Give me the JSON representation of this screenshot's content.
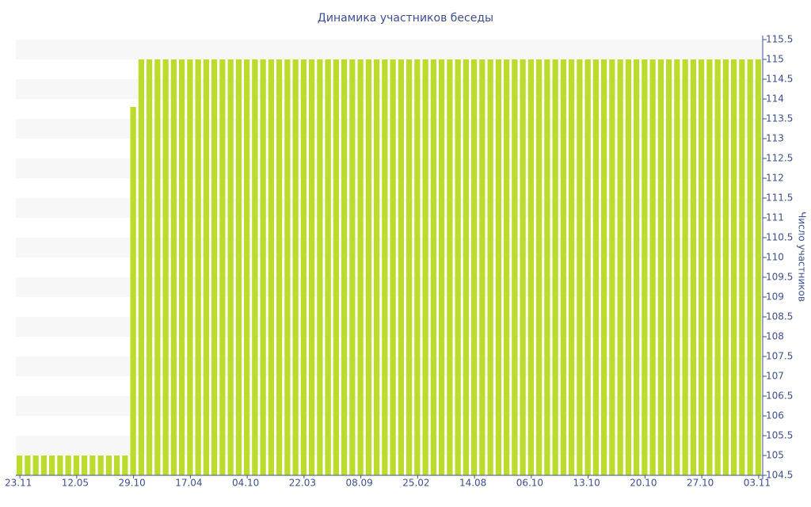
{
  "chart_data": {
    "type": "bar",
    "title": "Динамика участников беседы",
    "y_label": "Число участников",
    "color": "#bcdc2d",
    "grid": true,
    "y_axis_side": "right",
    "categories": [
      "23.11",
      null,
      null,
      null,
      null,
      null,
      null,
      "12.05",
      null,
      null,
      null,
      null,
      null,
      null,
      "29.10",
      null,
      null,
      null,
      null,
      null,
      null,
      "17.04",
      null,
      null,
      null,
      null,
      null,
      null,
      "04.10",
      null,
      null,
      null,
      null,
      null,
      null,
      "22.03",
      null,
      null,
      null,
      null,
      null,
      null,
      "08.09",
      null,
      null,
      null,
      null,
      null,
      null,
      "25.02",
      null,
      null,
      null,
      null,
      null,
      null,
      "14.08",
      null,
      null,
      null,
      null,
      null,
      null,
      "06.10",
      null,
      null,
      null,
      null,
      null,
      null,
      "13.10",
      null,
      null,
      null,
      null,
      null,
      null,
      "20.10",
      null,
      null,
      null,
      null,
      null,
      null,
      "27.10",
      null,
      null,
      null,
      null,
      null,
      null,
      "03.11"
    ],
    "values": [
      105,
      105,
      105,
      105,
      105,
      105,
      105,
      105,
      105,
      105,
      105,
      105,
      105,
      105,
      113.8,
      115,
      115,
      115,
      115,
      115,
      115,
      115,
      115,
      115,
      115,
      115,
      115,
      115,
      115,
      115,
      115,
      115,
      115,
      115,
      115,
      115,
      115,
      115,
      115,
      115,
      115,
      115,
      115,
      115,
      115,
      115,
      115,
      115,
      115,
      115,
      115,
      115,
      115,
      115,
      115,
      115,
      115,
      115,
      115,
      115,
      115,
      115,
      115,
      115,
      115,
      115,
      115,
      115,
      115,
      115,
      115,
      115,
      115,
      115,
      115,
      115,
      115,
      115,
      115,
      115,
      115,
      115,
      115,
      115,
      115,
      115,
      115,
      115,
      115,
      115,
      115,
      115
    ],
    "ylim": [
      104.5,
      115.5
    ],
    "yticks": [
      104.5,
      105,
      105.5,
      106,
      106.5,
      107,
      107.5,
      108,
      108.5,
      109,
      109.5,
      110,
      110.5,
      111,
      111.5,
      112,
      112.5,
      113,
      113.5,
      114,
      114.5,
      115,
      115.5
    ]
  }
}
